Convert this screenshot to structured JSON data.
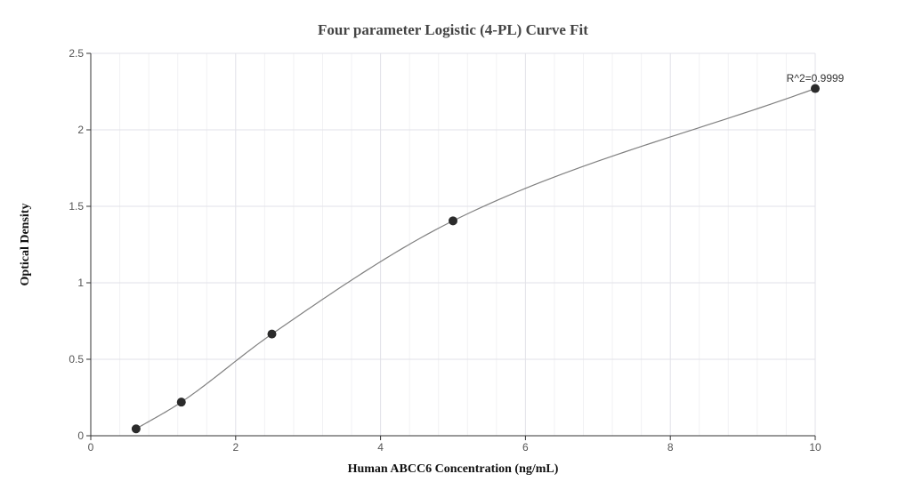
{
  "chart_data": {
    "type": "scatter",
    "title": "Four parameter Logistic (4-PL) Curve Fit",
    "xlabel": "Human ABCC6 Concentration (ng/mL)",
    "ylabel": "Optical Density",
    "xlim": [
      0,
      10
    ],
    "ylim": [
      0,
      2.5
    ],
    "x_ticks": [
      0,
      2,
      4,
      6,
      8,
      10
    ],
    "y_ticks": [
      0,
      0.5,
      1,
      1.5,
      2,
      2.5
    ],
    "x_tick_labels": [
      "0",
      "2",
      "4",
      "6",
      "8",
      "10"
    ],
    "y_tick_labels": [
      "0",
      "0.5",
      "1",
      "1.5",
      "2",
      "2.5"
    ],
    "grid": true,
    "series": [
      {
        "x": [
          0.625,
          1.25,
          2.5,
          5,
          10
        ],
        "y": [
          0.045,
          0.22,
          0.665,
          1.405,
          2.27
        ]
      }
    ],
    "fit_curve": {
      "model": "4-PL",
      "color": "#808080"
    },
    "annotation": "R^2=0.9999",
    "point_color": "#2b2b2b"
  }
}
